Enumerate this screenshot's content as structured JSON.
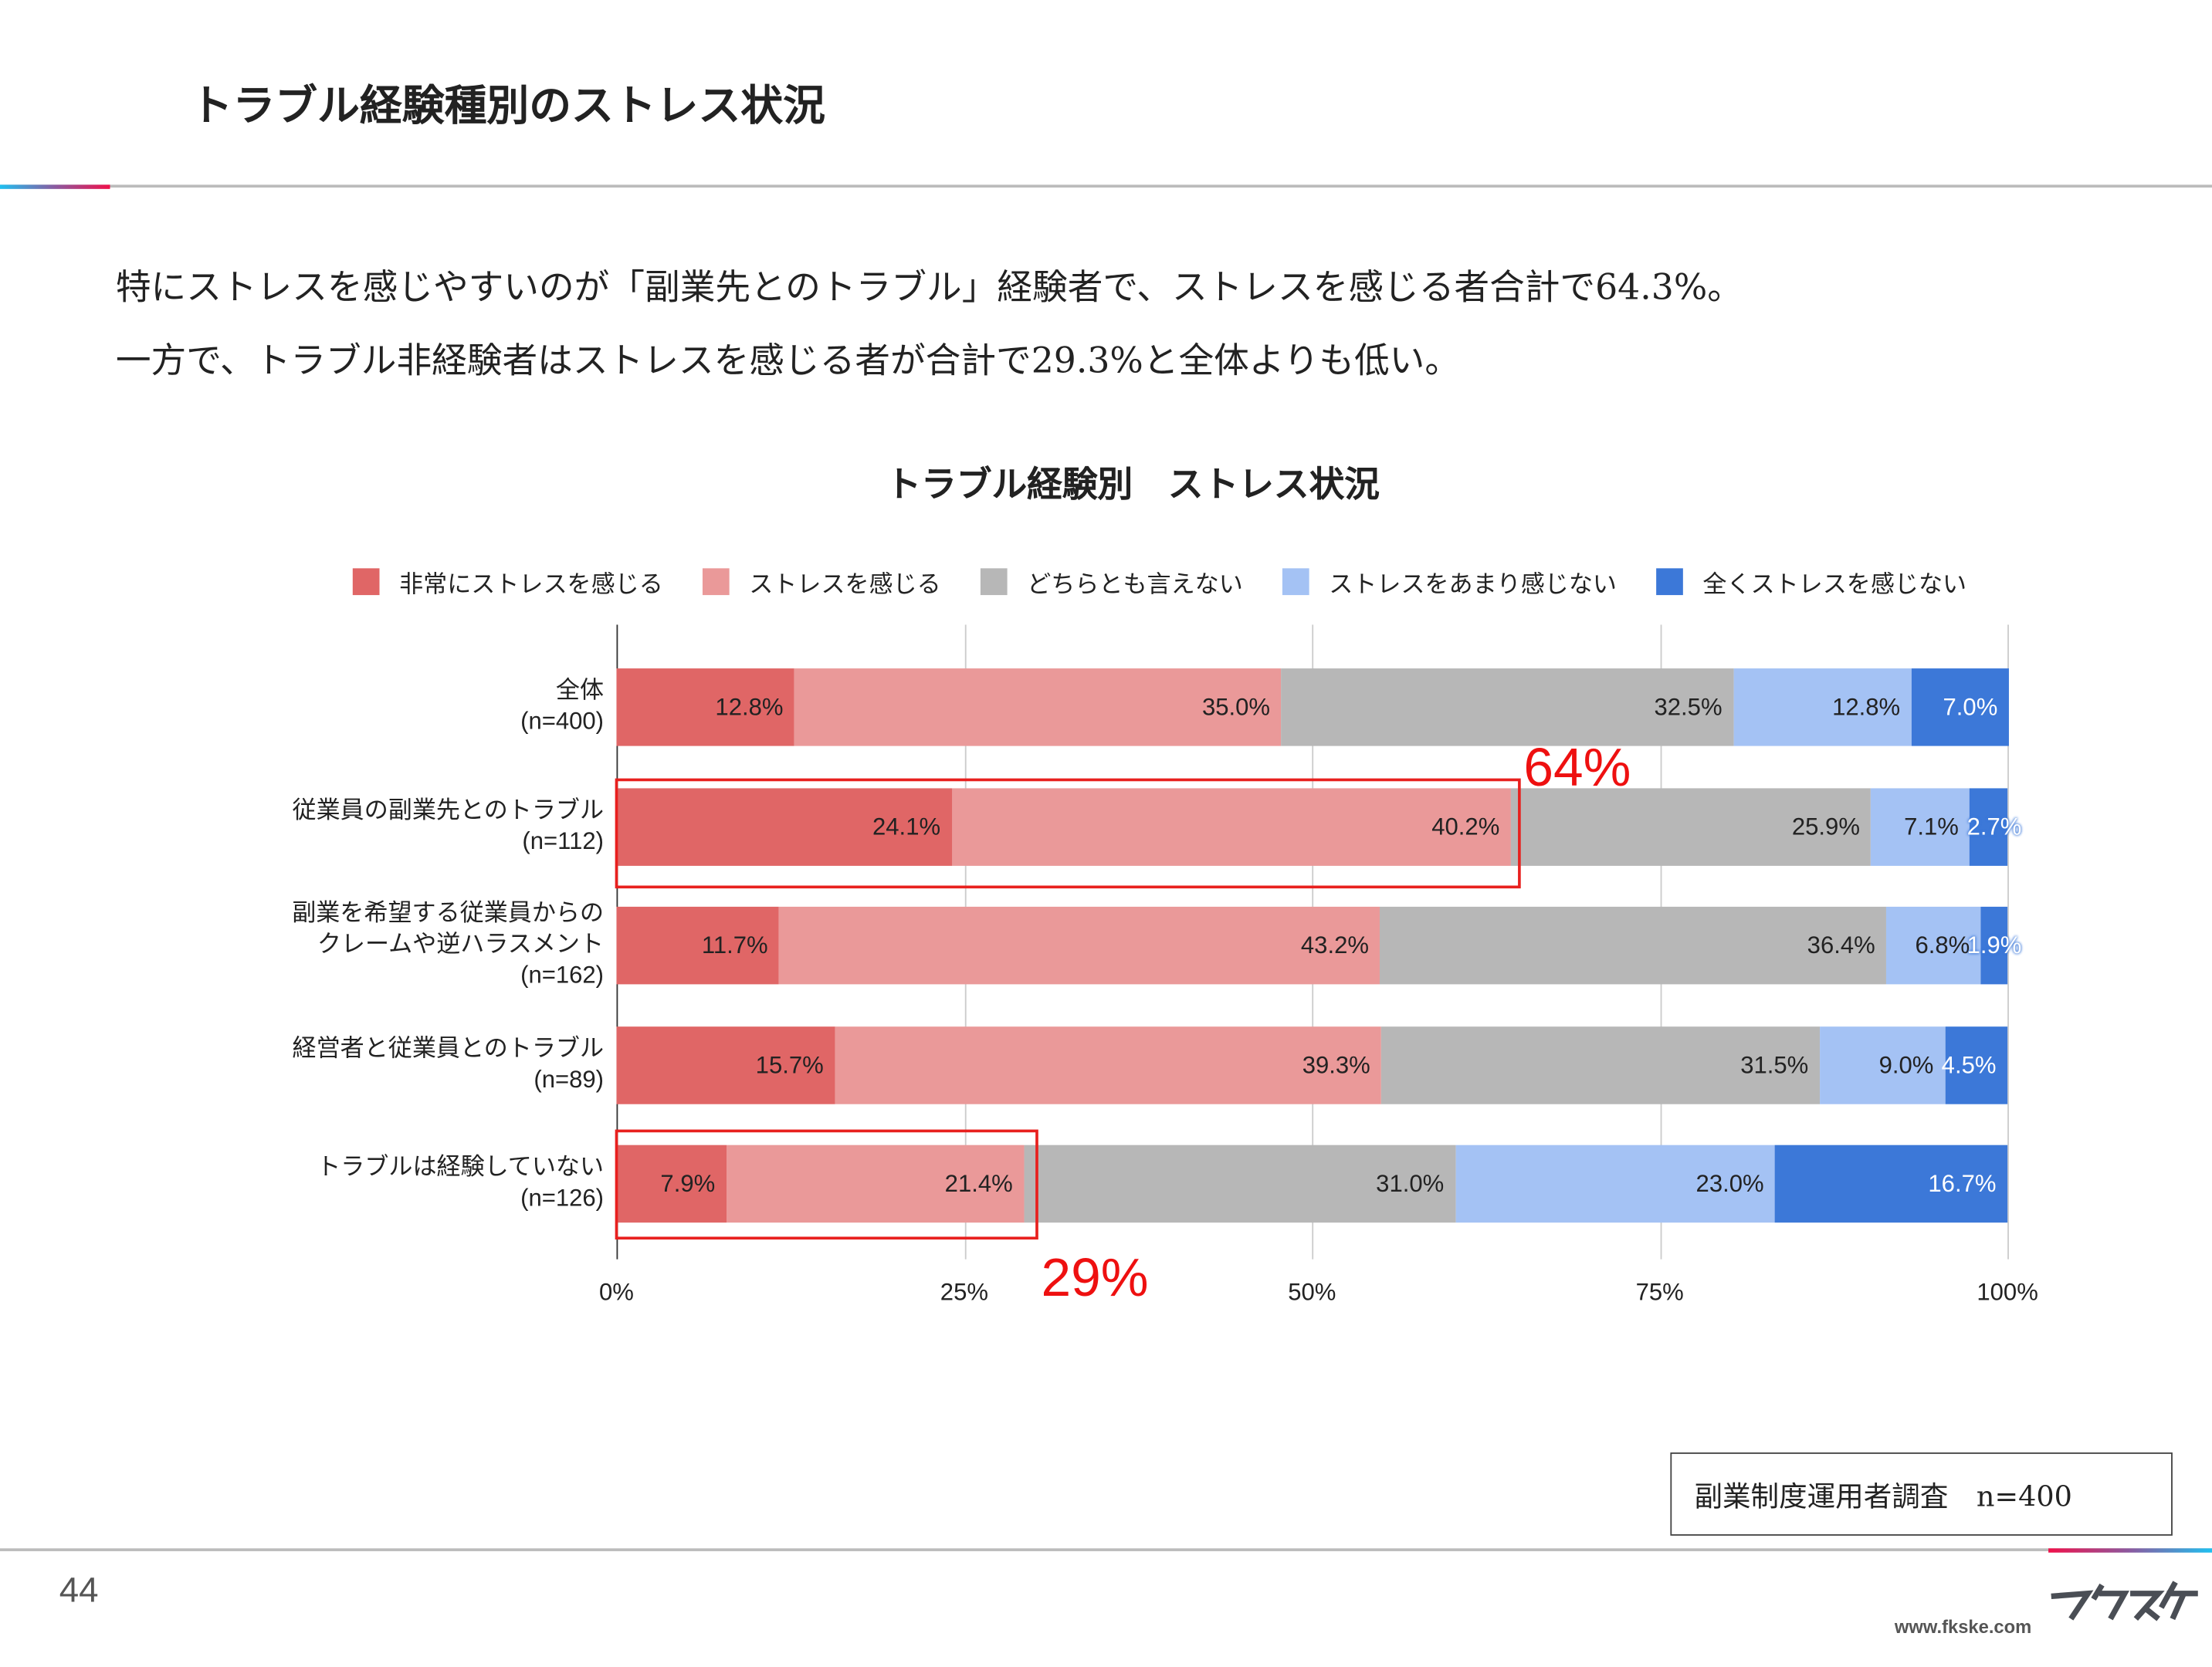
{
  "header": {
    "title": "トラブル経験種別のストレス状況"
  },
  "description": [
    "特にストレスを感じやすいのが「副業先とのトラブル」経験者で、ストレスを感じる者合計で64.3%。",
    "一方で、トラブル非経験者はストレスを感じる者が合計で29.3%と全体よりも低い。"
  ],
  "chart_data": {
    "type": "bar",
    "orientation": "horizontal",
    "stacked": "100%",
    "title": "トラブル経験別　ストレス状況",
    "categories": [
      [
        "全体",
        "(n=400)"
      ],
      [
        "従業員の副業先とのトラブル",
        "(n=112)"
      ],
      [
        "副業を希望する従業員からの",
        "クレームや逆ハラスメント",
        "(n=162)"
      ],
      [
        "経営者と従業員とのトラブル",
        "(n=89)"
      ],
      [
        "トラブルは経験していない",
        "(n=126)"
      ]
    ],
    "series": [
      {
        "name": "非常にストレスを感じる",
        "color": "#e06666",
        "values": [
          12.8,
          24.1,
          11.7,
          15.7,
          7.9
        ]
      },
      {
        "name": "ストレスを感じる",
        "color": "#ea9999",
        "values": [
          35.0,
          40.2,
          43.2,
          39.3,
          21.4
        ]
      },
      {
        "name": "どちらとも言えない",
        "color": "#b7b7b7",
        "values": [
          32.5,
          25.9,
          36.4,
          31.5,
          31.0
        ]
      },
      {
        "name": "ストレスをあまり感じない",
        "color": "#a4c2f4",
        "values": [
          12.8,
          7.1,
          6.8,
          9.0,
          23.0
        ]
      },
      {
        "name": "全くストレスを感じない",
        "color": "#3c78d8",
        "values": [
          7.0,
          2.7,
          1.9,
          4.5,
          16.7
        ]
      }
    ],
    "xlim": [
      0,
      100
    ],
    "xticks": [
      "0%",
      "25%",
      "50%",
      "75%",
      "100%"
    ],
    "grid": true,
    "legend": "top",
    "annotations": [
      {
        "label": "64%",
        "row": 1,
        "covers_to": 64.3
      },
      {
        "label": "29%",
        "row": 4,
        "covers_to": 29.3
      }
    ]
  },
  "source": "副業制度運用者調査　n=400",
  "footer": {
    "page": "44",
    "url": "www.fkske.com",
    "logo": "フクスケ"
  }
}
